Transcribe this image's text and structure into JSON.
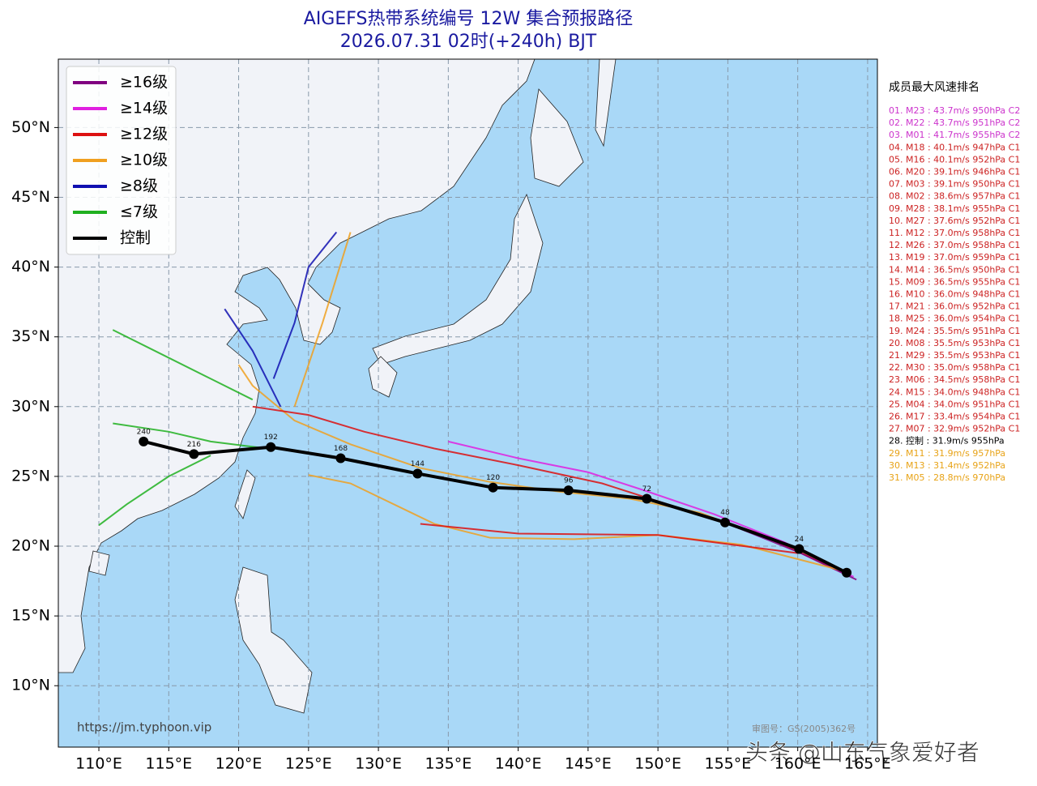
{
  "title": "AIGEFS热带系统编号 12W 集合预报路径",
  "subtitle": "2026.07.31 02时(+240h) BJT",
  "map": {
    "xlim": [
      107.1,
      165.7
    ],
    "ylim": [
      5.6,
      54.9
    ],
    "xticks": [
      {
        "value": 110,
        "label": "110°E"
      },
      {
        "value": 115,
        "label": "115°E"
      },
      {
        "value": 120,
        "label": "120°E"
      },
      {
        "value": 125,
        "label": "125°E"
      },
      {
        "value": 130,
        "label": "130°E"
      },
      {
        "value": 135,
        "label": "135°E"
      },
      {
        "value": 140,
        "label": "140°E"
      },
      {
        "value": 145,
        "label": "145°E"
      },
      {
        "value": 150,
        "label": "150°E"
      },
      {
        "value": 155,
        "label": "155°E"
      },
      {
        "value": 160,
        "label": "160°E"
      },
      {
        "value": 165,
        "label": "165°E"
      }
    ],
    "yticks": [
      {
        "value": 10,
        "label": "10°N"
      },
      {
        "value": 15,
        "label": "15°N"
      },
      {
        "value": 20,
        "label": "20°N"
      },
      {
        "value": 25,
        "label": "25°N"
      },
      {
        "value": 30,
        "label": "30°N"
      },
      {
        "value": 35,
        "label": "35°N"
      },
      {
        "value": 40,
        "label": "40°N"
      },
      {
        "value": 45,
        "label": "45°N"
      },
      {
        "value": 50,
        "label": "50°N"
      }
    ],
    "grid": true
  },
  "legend": [
    {
      "label": "≥16级",
      "color": "#800080"
    },
    {
      "label": "≥14级",
      "color": "#e020e0"
    },
    {
      "label": "≥12级",
      "color": "#dd1111"
    },
    {
      "label": "≥10级",
      "color": "#f0a020"
    },
    {
      "label": "≥8级",
      "color": "#1010b0"
    },
    {
      "label": "≤7级",
      "color": "#20b020"
    },
    {
      "label": "控制",
      "color": "#000000"
    }
  ],
  "tracks": [
    {
      "color": "#f0a020",
      "lon": [
        163.5,
        158,
        153,
        148,
        143,
        138,
        133,
        128,
        124,
        121,
        120
      ],
      "lat": [
        18.1,
        20.5,
        22.4,
        23.4,
        23.9,
        24.6,
        25.6,
        27.3,
        29,
        31.5,
        33
      ]
    },
    {
      "color": "#dd1111",
      "lon": [
        163.5,
        157,
        151,
        146,
        140,
        134,
        129,
        125,
        121
      ],
      "lat": [
        18,
        21,
        22.9,
        24.5,
        25.8,
        27,
        28.2,
        29.4,
        30
      ]
    },
    {
      "color": "#e020e0",
      "lon": [
        164,
        159,
        154,
        149,
        145,
        140,
        135
      ],
      "lat": [
        17.8,
        20.3,
        22.3,
        24,
        25.3,
        26.3,
        27.5
      ]
    },
    {
      "color": "#800080",
      "lon": [
        164.2,
        160,
        155,
        150
      ],
      "lat": [
        17.6,
        19.6,
        21.6,
        23.2
      ]
    },
    {
      "color": "#f0a020",
      "lon": [
        163,
        156,
        150,
        144,
        138,
        134,
        128,
        125
      ],
      "lat": [
        18.3,
        20.1,
        20.8,
        20.5,
        20.6,
        21.6,
        24.5,
        25.1
      ]
    },
    {
      "color": "#dd1111",
      "lon": [
        160,
        150,
        140,
        133
      ],
      "lat": [
        19.5,
        20.8,
        20.9,
        21.6
      ]
    },
    {
      "color": "#f0a020",
      "lon": [
        124,
        126,
        128
      ],
      "lat": [
        30,
        36,
        42.5
      ]
    },
    {
      "color": "#1010b0",
      "lon": [
        122.5,
        124,
        125,
        127
      ],
      "lat": [
        32,
        36,
        40,
        42.5
      ]
    },
    {
      "color": "#1010b0",
      "lon": [
        123,
        121,
        119
      ],
      "lat": [
        30,
        34,
        37
      ]
    },
    {
      "color": "#20b020",
      "lon": [
        122,
        118,
        115,
        111
      ],
      "lat": [
        27,
        27.5,
        28.2,
        28.8
      ]
    },
    {
      "color": "#20b020",
      "lon": [
        118,
        115,
        112,
        110
      ],
      "lat": [
        26.5,
        25,
        23,
        21.5
      ]
    },
    {
      "color": "#20b020",
      "lon": [
        121,
        118,
        114,
        111
      ],
      "lat": [
        30.5,
        32,
        34,
        35.5
      ]
    }
  ],
  "control": {
    "color": "#000000",
    "lon": [
      113.2,
      116.8,
      122.3,
      127.3,
      132.8,
      138.2,
      143.6,
      149.2,
      154.8,
      160.1,
      163.5
    ],
    "lat": [
      27.5,
      26.6,
      27.1,
      26.3,
      25.2,
      24.2,
      24.0,
      23.4,
      21.7,
      19.8,
      18.1
    ],
    "hours": [
      240,
      216,
      192,
      168,
      144,
      120,
      96,
      72,
      48,
      24,
      null
    ]
  },
  "ranking": {
    "title": "成员最大风速排名",
    "items": [
      {
        "text": "01. M23 : 43.7m/s 950hPa C2",
        "color": "#cc33cc"
      },
      {
        "text": "02. M22 : 43.7m/s 951hPa C2",
        "color": "#cc33cc"
      },
      {
        "text": "03. M01 : 41.7m/s 955hPa C2",
        "color": "#cc33cc"
      },
      {
        "text": "04. M18 : 40.1m/s 947hPa C1",
        "color": "#cc2222"
      },
      {
        "text": "05. M16 : 40.1m/s 952hPa C1",
        "color": "#cc2222"
      },
      {
        "text": "06. M20 : 39.1m/s 946hPa C1",
        "color": "#cc2222"
      },
      {
        "text": "07. M03 : 39.1m/s 950hPa C1",
        "color": "#cc2222"
      },
      {
        "text": "08. M02 : 38.6m/s 957hPa C1",
        "color": "#cc2222"
      },
      {
        "text": "09. M28 : 38.1m/s 955hPa C1",
        "color": "#cc2222"
      },
      {
        "text": "10. M27 : 37.6m/s 952hPa C1",
        "color": "#cc2222"
      },
      {
        "text": "11. M12 : 37.0m/s 958hPa C1",
        "color": "#cc2222"
      },
      {
        "text": "12. M26 : 37.0m/s 958hPa C1",
        "color": "#cc2222"
      },
      {
        "text": "13. M19 : 37.0m/s 959hPa C1",
        "color": "#cc2222"
      },
      {
        "text": "14. M14 : 36.5m/s 950hPa C1",
        "color": "#cc2222"
      },
      {
        "text": "15. M09 : 36.5m/s 955hPa C1",
        "color": "#cc2222"
      },
      {
        "text": "16. M10 : 36.0m/s 948hPa C1",
        "color": "#cc2222"
      },
      {
        "text": "17. M21 : 36.0m/s 952hPa C1",
        "color": "#cc2222"
      },
      {
        "text": "18. M25 : 36.0m/s 954hPa C1",
        "color": "#cc2222"
      },
      {
        "text": "19. M24 : 35.5m/s 951hPa C1",
        "color": "#cc2222"
      },
      {
        "text": "20. M08 : 35.5m/s 953hPa C1",
        "color": "#cc2222"
      },
      {
        "text": "21. M29 : 35.5m/s 953hPa C1",
        "color": "#cc2222"
      },
      {
        "text": "22. M30 : 35.0m/s 958hPa C1",
        "color": "#cc2222"
      },
      {
        "text": "23. M06 : 34.5m/s 958hPa C1",
        "color": "#cc2222"
      },
      {
        "text": "24. M15 : 34.0m/s 948hPa C1",
        "color": "#cc2222"
      },
      {
        "text": "25. M04 : 34.0m/s 951hPa C1",
        "color": "#cc2222"
      },
      {
        "text": "26. M17 : 33.4m/s 954hPa C1",
        "color": "#cc2222"
      },
      {
        "text": "27. M07 : 32.9m/s 952hPa C1",
        "color": "#cc2222"
      },
      {
        "text": "28. 控制 : 31.9m/s 955hPa",
        "color": "#000000"
      },
      {
        "text": "29. M11 : 31.9m/s 957hPa",
        "color": "#e8a317"
      },
      {
        "text": "30. M13 : 31.4m/s 952hPa",
        "color": "#e8a317"
      },
      {
        "text": "31. M05 : 28.8m/s 970hPa",
        "color": "#e8a317"
      }
    ]
  },
  "footer": {
    "url": "https://jm.typhoon.vip",
    "approval": "审图号：GS(2005)362号",
    "watermark": "头条 @山东气象爱好者"
  }
}
